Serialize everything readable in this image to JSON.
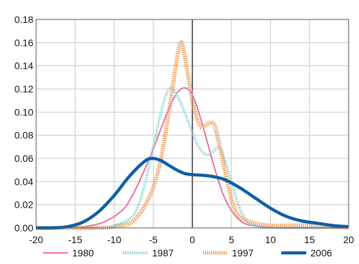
{
  "chart_data": {
    "type": "line",
    "title": "",
    "xlabel": "",
    "ylabel": "",
    "xlim": [
      -20,
      20
    ],
    "ylim": [
      0,
      0.18
    ],
    "grid": true,
    "legend_position": "bottom",
    "x_ticks": [
      "-20",
      "-15",
      "-10",
      "-5",
      "0",
      "5",
      "10",
      "15",
      "20"
    ],
    "y_ticks": [
      "0.00",
      "0.02",
      "0.04",
      "0.06",
      "0.08",
      "0.10",
      "0.12",
      "0.14",
      "0.16",
      "0.18"
    ],
    "series": [
      {
        "name": "1980",
        "color": "#e8739a",
        "style": "solid",
        "points": [
          [
            -20,
            0.0
          ],
          [
            -16,
            0.0
          ],
          [
            -13,
            0.002
          ],
          [
            -11,
            0.006
          ],
          [
            -9,
            0.015
          ],
          [
            -8,
            0.024
          ],
          [
            -7,
            0.037
          ],
          [
            -6,
            0.052
          ],
          [
            -5,
            0.068
          ],
          [
            -4,
            0.086
          ],
          [
            -3,
            0.103
          ],
          [
            -2,
            0.116
          ],
          [
            -1,
            0.121
          ],
          [
            0,
            0.115
          ],
          [
            1,
            0.096
          ],
          [
            2,
            0.072
          ],
          [
            3,
            0.048
          ],
          [
            4,
            0.028
          ],
          [
            5,
            0.015
          ],
          [
            6,
            0.007
          ],
          [
            7,
            0.003
          ],
          [
            9,
            0.001
          ],
          [
            12,
            0.0
          ],
          [
            20,
            0.0
          ]
        ]
      },
      {
        "name": "1987",
        "color": "#8fd3d3",
        "style": "dotted",
        "points": [
          [
            -20,
            0.0
          ],
          [
            -12,
            0.0
          ],
          [
            -10,
            0.002
          ],
          [
            -8,
            0.008
          ],
          [
            -7,
            0.018
          ],
          [
            -6,
            0.04
          ],
          [
            -5,
            0.07
          ],
          [
            -4,
            0.1
          ],
          [
            -3,
            0.12
          ],
          [
            -2,
            0.115
          ],
          [
            -1,
            0.1
          ],
          [
            0,
            0.082
          ],
          [
            1,
            0.068
          ],
          [
            2,
            0.063
          ],
          [
            3,
            0.068
          ],
          [
            3.5,
            0.07
          ],
          [
            4,
            0.062
          ],
          [
            5,
            0.04
          ],
          [
            6,
            0.018
          ],
          [
            7,
            0.006
          ],
          [
            8,
            0.002
          ],
          [
            10,
            0.0
          ],
          [
            20,
            0.0
          ]
        ]
      },
      {
        "name": "1997",
        "color": "#f0a060",
        "style": "dashed",
        "points": [
          [
            -20,
            0.0
          ],
          [
            -12,
            0.0
          ],
          [
            -10,
            0.001
          ],
          [
            -8,
            0.004
          ],
          [
            -7,
            0.01
          ],
          [
            -6,
            0.02
          ],
          [
            -5,
            0.035
          ],
          [
            -4,
            0.06
          ],
          [
            -3,
            0.1
          ],
          [
            -2,
            0.145
          ],
          [
            -1.5,
            0.16
          ],
          [
            -1,
            0.15
          ],
          [
            0,
            0.11
          ],
          [
            1,
            0.088
          ],
          [
            2,
            0.09
          ],
          [
            2.5,
            0.091
          ],
          [
            3,
            0.085
          ],
          [
            4,
            0.055
          ],
          [
            5,
            0.025
          ],
          [
            6,
            0.01
          ],
          [
            8,
            0.004
          ],
          [
            10,
            0.002
          ],
          [
            12,
            0.002
          ],
          [
            15,
            0.002
          ],
          [
            18,
            0.001
          ],
          [
            20,
            0.0
          ]
        ]
      },
      {
        "name": "2006",
        "color": "#0d5ea8",
        "style": "solid-thick",
        "points": [
          [
            -20,
            0.0
          ],
          [
            -18,
            0.0
          ],
          [
            -16,
            0.001
          ],
          [
            -14,
            0.005
          ],
          [
            -12,
            0.014
          ],
          [
            -10,
            0.028
          ],
          [
            -8,
            0.045
          ],
          [
            -6,
            0.058
          ],
          [
            -5,
            0.06
          ],
          [
            -4,
            0.058
          ],
          [
            -3,
            0.054
          ],
          [
            -2,
            0.05
          ],
          [
            -1,
            0.047
          ],
          [
            0,
            0.046
          ],
          [
            2,
            0.045
          ],
          [
            4,
            0.042
          ],
          [
            6,
            0.035
          ],
          [
            8,
            0.026
          ],
          [
            10,
            0.017
          ],
          [
            12,
            0.01
          ],
          [
            14,
            0.006
          ],
          [
            16,
            0.004
          ],
          [
            18,
            0.002
          ],
          [
            20,
            0.001
          ]
        ]
      }
    ]
  }
}
